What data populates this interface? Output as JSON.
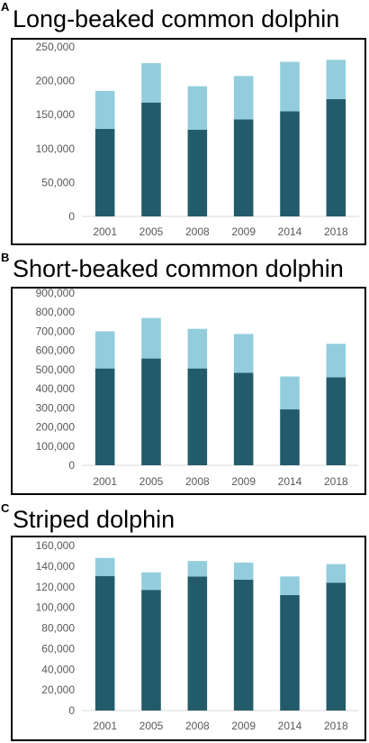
{
  "chart_data": [
    {
      "type": "bar",
      "stacked": true,
      "panel": "A",
      "title": "Long-beaked common dolphin",
      "categories": [
        "2001",
        "2005",
        "2008",
        "2009",
        "2014",
        "2018"
      ],
      "series": [
        {
          "values": [
            129000,
            168000,
            128000,
            143000,
            155000,
            173000
          ],
          "color": "#245b6a"
        },
        {
          "values": [
            56000,
            58000,
            64000,
            64000,
            73000,
            58000
          ],
          "color": "#93cddd"
        }
      ],
      "ylim": [
        0,
        250000
      ],
      "yticks": [
        0,
        50000,
        100000,
        150000,
        200000,
        250000
      ],
      "ytick_labels": [
        "0",
        "50,000",
        "100,000",
        "150,000",
        "200,000",
        "250,000"
      ],
      "grid": false,
      "legend": "none"
    },
    {
      "type": "bar",
      "stacked": true,
      "panel": "B",
      "title": "Short-beaked common dolphin",
      "categories": [
        "2001",
        "2005",
        "2008",
        "2009",
        "2014",
        "2018"
      ],
      "series": [
        {
          "values": [
            506000,
            558000,
            506000,
            483000,
            292000,
            460000
          ],
          "color": "#245b6a"
        },
        {
          "values": [
            194000,
            212000,
            207000,
            203000,
            172000,
            175000
          ],
          "color": "#93cddd"
        }
      ],
      "ylim": [
        0,
        900000
      ],
      "yticks": [
        0,
        100000,
        200000,
        300000,
        400000,
        500000,
        600000,
        700000,
        800000,
        900000
      ],
      "ytick_labels": [
        "0",
        "100,000",
        "200,000",
        "300,000",
        "400,000",
        "500,000",
        "600,000",
        "700,000",
        "800,000",
        "900,000"
      ],
      "grid": false,
      "legend": "none"
    },
    {
      "type": "bar",
      "stacked": true,
      "panel": "C",
      "title": "Striped dolphin",
      "categories": [
        "2001",
        "2005",
        "2008",
        "2009",
        "2014",
        "2018"
      ],
      "series": [
        {
          "values": [
            130500,
            117000,
            130000,
            127000,
            112000,
            124000
          ],
          "color": "#245b6a"
        },
        {
          "values": [
            17500,
            17000,
            15000,
            16500,
            18000,
            18000
          ],
          "color": "#93cddd"
        }
      ],
      "ylim": [
        0,
        160000
      ],
      "yticks": [
        0,
        20000,
        40000,
        60000,
        80000,
        100000,
        120000,
        140000,
        160000
      ],
      "ytick_labels": [
        "0",
        "20,000",
        "40,000",
        "60,000",
        "80,000",
        "100,000",
        "120,000",
        "140,000",
        "160,000"
      ],
      "grid": false,
      "legend": "none"
    }
  ]
}
